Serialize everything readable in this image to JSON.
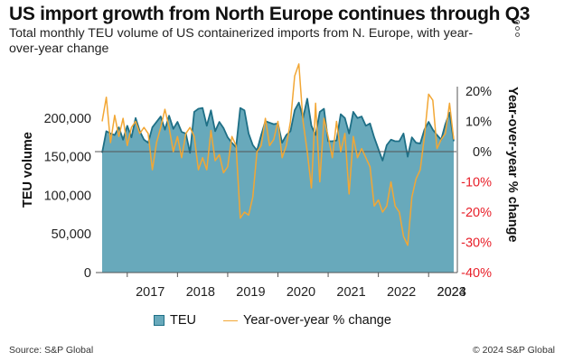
{
  "header": {
    "title": "US import growth from North Europe continues through Q3",
    "subtitle": "Total monthly TEU volume of US containerized imports from N. Europe, with year-over-year change"
  },
  "legend": {
    "area_label": "TEU",
    "line_label": "Year-over-year % change"
  },
  "footer": {
    "source": "Source: S&P Global",
    "copyright": "© 2024 S&P Global"
  },
  "chart_data": {
    "type": "area",
    "y_left": {
      "label": "TEU volume",
      "range": [
        0,
        250000
      ],
      "ticks": [
        0,
        50000,
        100000,
        150000,
        200000
      ],
      "tick_labels": [
        "0",
        "50,000",
        "100,000",
        "150,000",
        "200,000"
      ]
    },
    "y_right": {
      "label": "Year-over-year % change",
      "range": [
        -40,
        20
      ],
      "ticks": [
        20,
        10,
        0,
        -10,
        -20,
        -30,
        -40
      ],
      "tick_labels": [
        "20%",
        "10%",
        "0%",
        "-10%",
        "-20%",
        "-30%",
        "-40%"
      ]
    },
    "x_axis": {
      "start": "2016-07",
      "end": "2024-09",
      "year_labels": [
        "2017",
        "2018",
        "2019",
        "2020",
        "2021",
        "2022",
        "2023",
        "2024"
      ]
    },
    "colors": {
      "area_fill": "#68a9bb",
      "area_line": "#1e6f86",
      "line": "#f2a735",
      "negative_tick": "#e8202a"
    },
    "series": [
      {
        "name": "TEU",
        "axis": "left",
        "values": [
          155000,
          183000,
          180000,
          178000,
          188000,
          172000,
          190000,
          175000,
          200000,
          183000,
          172000,
          168000,
          188000,
          195000,
          202000,
          185000,
          203000,
          186000,
          195000,
          182000,
          180000,
          155000,
          208000,
          212000,
          213000,
          190000,
          210000,
          183000,
          195000,
          187000,
          175000,
          168000,
          162000,
          213000,
          210000,
          180000,
          165000,
          158000,
          178000,
          196000,
          194000,
          192000,
          193000,
          168000,
          178000,
          183000,
          210000,
          220000,
          200000,
          225000,
          190000,
          178000,
          208000,
          212000,
          170000,
          170000,
          171000,
          205000,
          200000,
          180000,
          208000,
          200000,
          202000,
          190000,
          193000,
          175000,
          160000,
          145000,
          165000,
          172000,
          170000,
          170000,
          180000,
          150000,
          175000,
          168000,
          167000,
          185000,
          195000,
          185000,
          178000,
          172000,
          192000,
          207000,
          170000
        ]
      },
      {
        "name": "Year-over-year % change",
        "axis": "right",
        "values": [
          10,
          18,
          3,
          12,
          5,
          11,
          2,
          8,
          10,
          6,
          8,
          6,
          -6,
          3,
          8,
          14,
          8,
          0,
          5,
          -2,
          6,
          8,
          5,
          -6,
          -2,
          -6,
          7,
          -3,
          -1,
          -7,
          -5,
          5,
          2,
          -22,
          -20,
          -21,
          -15,
          0,
          2,
          11,
          2,
          4,
          10,
          -2,
          2,
          10,
          25,
          29,
          10,
          0,
          -12,
          16,
          -10,
          11,
          5,
          -2,
          10,
          0,
          6,
          -14,
          5,
          -2,
          1,
          -2,
          -5,
          -18,
          -16,
          -20,
          -18,
          -10,
          -18,
          -20,
          -28,
          -31,
          -15,
          -9,
          -6,
          5,
          19,
          17,
          1,
          4,
          6,
          16,
          4
        ]
      }
    ]
  }
}
